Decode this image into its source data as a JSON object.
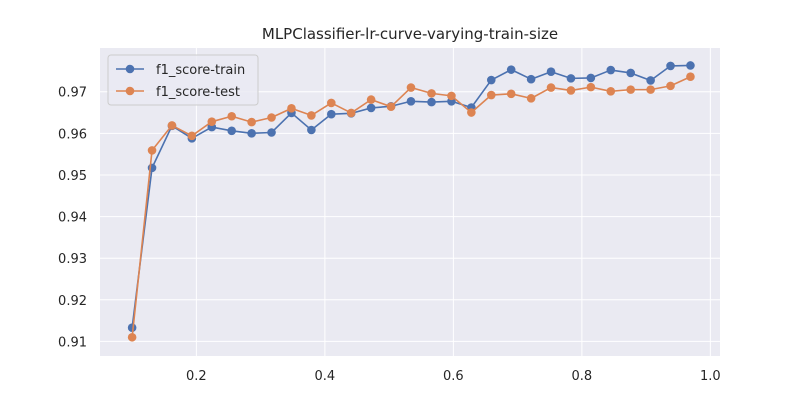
{
  "chart_data": {
    "type": "line",
    "title": "MLPClassifier-lr-curve-varying-train-size",
    "xlabel": "",
    "ylabel": "",
    "xlim": [
      0.05,
      1.015
    ],
    "ylim": [
      0.9065,
      0.9805
    ],
    "xticks": [
      0.2,
      0.4,
      0.6,
      0.8,
      1.0
    ],
    "xtick_labels": [
      "0.2",
      "0.4",
      "0.6",
      "0.8",
      "1.0"
    ],
    "yticks": [
      0.91,
      0.92,
      0.93,
      0.94,
      0.95,
      0.96,
      0.97
    ],
    "ytick_labels": [
      "0.91",
      "0.92",
      "0.93",
      "0.94",
      "0.95",
      "0.96",
      "0.97"
    ],
    "grid": true,
    "legend_position": "top-left",
    "x": [
      0.1,
      0.131,
      0.162,
      0.193,
      0.224,
      0.255,
      0.286,
      0.317,
      0.348,
      0.379,
      0.41,
      0.441,
      0.472,
      0.503,
      0.534,
      0.566,
      0.597,
      0.628,
      0.659,
      0.69,
      0.721,
      0.752,
      0.783,
      0.814,
      0.845,
      0.876,
      0.907,
      0.938,
      0.969
    ],
    "series": [
      {
        "name": "f1_score-train",
        "color": "#4c72b0",
        "values": [
          0.9133,
          0.9517,
          0.9618,
          0.9588,
          0.9615,
          0.9606,
          0.96,
          0.9602,
          0.9649,
          0.9608,
          0.9646,
          0.9648,
          0.9661,
          0.9665,
          0.9677,
          0.9675,
          0.9677,
          0.9662,
          0.9728,
          0.9753,
          0.973,
          0.9748,
          0.9732,
          0.9733,
          0.9752,
          0.9745,
          0.9727,
          0.9762,
          0.9763
        ]
      },
      {
        "name": "f1_score-test",
        "color": "#dd8452",
        "values": [
          0.911,
          0.9559,
          0.9619,
          0.9594,
          0.9628,
          0.9641,
          0.9627,
          0.9638,
          0.966,
          0.9643,
          0.9673,
          0.9649,
          0.9681,
          0.9664,
          0.971,
          0.9696,
          0.969,
          0.965,
          0.9692,
          0.9695,
          0.9684,
          0.971,
          0.9703,
          0.9711,
          0.9701,
          0.9705,
          0.9705,
          0.9714,
          0.9736
        ]
      }
    ],
    "colors": {
      "plot_background": "#eaeaf2",
      "grid": "#ffffff"
    }
  }
}
